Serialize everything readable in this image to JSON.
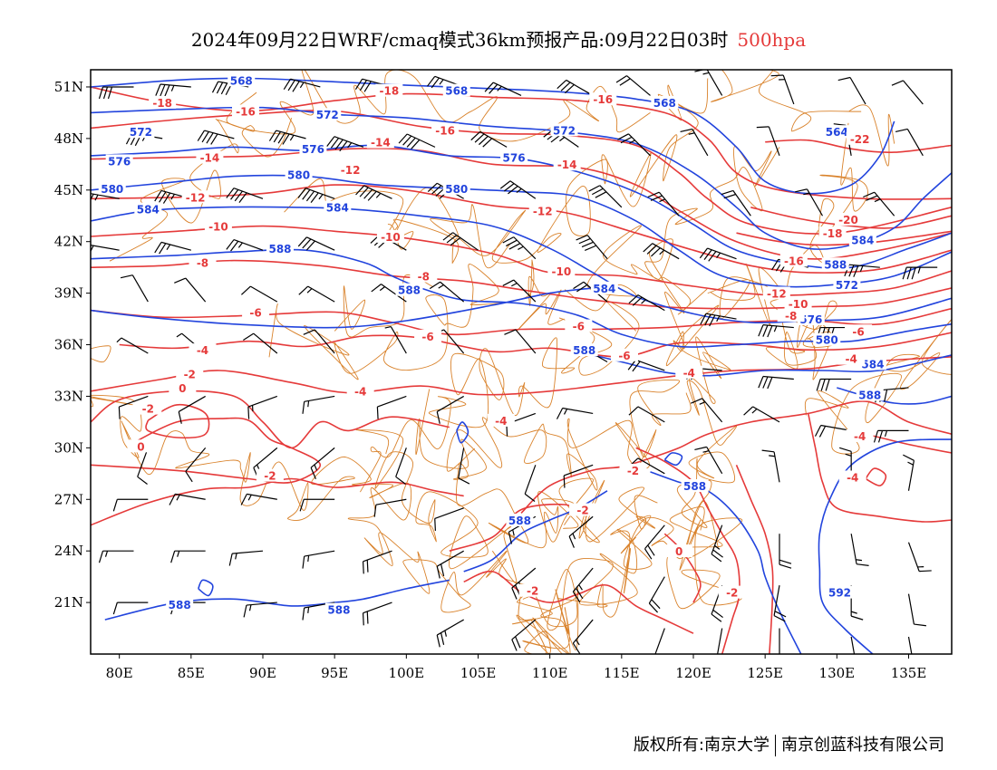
{
  "header": {
    "title": "2024年09月22日WRF/cmaq模式36km预报产品:09月22日03时",
    "level": "500hpa"
  },
  "colors": {
    "height_contour": "#2244dd",
    "temp_contour": "#e53a3a",
    "boundary": "#d9822b",
    "wind_barb": "#000000",
    "level_label": "#e53a3a"
  },
  "map": {
    "lon_range": [
      78,
      138
    ],
    "lat_range": [
      18,
      52
    ],
    "x_ticks": [
      "80E",
      "85E",
      "90E",
      "95E",
      "100E",
      "105E",
      "110E",
      "115E",
      "120E",
      "125E",
      "130E",
      "135E"
    ],
    "y_ticks": [
      "51N",
      "48N",
      "45N",
      "42N",
      "39N",
      "36N",
      "33N",
      "30N",
      "27N",
      "24N",
      "21N"
    ],
    "height_labels": [
      {
        "text": "568",
        "lon": 88.5,
        "lat": 51.3
      },
      {
        "text": "568",
        "lon": 103.5,
        "lat": 50.7
      },
      {
        "text": "568",
        "lon": 118.0,
        "lat": 50.0
      },
      {
        "text": "564",
        "lon": 130.0,
        "lat": 48.3
      },
      {
        "text": "572",
        "lon": 81.5,
        "lat": 48.3
      },
      {
        "text": "572",
        "lon": 94.5,
        "lat": 49.3
      },
      {
        "text": "572",
        "lon": 111.0,
        "lat": 48.4
      },
      {
        "text": "576",
        "lon": 80.0,
        "lat": 46.6
      },
      {
        "text": "576",
        "lon": 93.5,
        "lat": 47.3
      },
      {
        "text": "576",
        "lon": 107.5,
        "lat": 46.8
      },
      {
        "text": "580",
        "lon": 79.5,
        "lat": 45.0
      },
      {
        "text": "580",
        "lon": 92.5,
        "lat": 45.8
      },
      {
        "text": "580",
        "lon": 103.5,
        "lat": 45.0
      },
      {
        "text": "584",
        "lon": 82.0,
        "lat": 43.8
      },
      {
        "text": "584",
        "lon": 95.2,
        "lat": 43.9
      },
      {
        "text": "584",
        "lon": 131.8,
        "lat": 42.0
      },
      {
        "text": "588",
        "lon": 91.2,
        "lat": 41.5
      },
      {
        "text": "588",
        "lon": 100.2,
        "lat": 39.1
      },
      {
        "text": "584",
        "lon": 113.8,
        "lat": 39.2
      },
      {
        "text": "588",
        "lon": 129.9,
        "lat": 40.6
      },
      {
        "text": "572",
        "lon": 130.7,
        "lat": 39.4
      },
      {
        "text": "576",
        "lon": 128.2,
        "lat": 37.4
      },
      {
        "text": "580",
        "lon": 129.3,
        "lat": 36.2
      },
      {
        "text": "584",
        "lon": 132.5,
        "lat": 34.8
      },
      {
        "text": "588",
        "lon": 112.4,
        "lat": 35.6
      },
      {
        "text": "588",
        "lon": 132.3,
        "lat": 33.0
      },
      {
        "text": "588",
        "lon": 120.1,
        "lat": 27.7
      },
      {
        "text": "588",
        "lon": 107.9,
        "lat": 25.7
      },
      {
        "text": "592",
        "lon": 130.2,
        "lat": 21.5
      },
      {
        "text": "588",
        "lon": 84.2,
        "lat": 20.8
      },
      {
        "text": "588",
        "lon": 95.3,
        "lat": 20.5
      }
    ],
    "temp_labels": [
      {
        "text": "-18",
        "lon": 83.0,
        "lat": 50.0
      },
      {
        "text": "-16",
        "lon": 88.8,
        "lat": 49.5
      },
      {
        "text": "-18",
        "lon": 98.8,
        "lat": 50.7
      },
      {
        "text": "-16",
        "lon": 113.7,
        "lat": 50.2
      },
      {
        "text": "-16",
        "lon": 102.7,
        "lat": 48.4
      },
      {
        "text": "-14",
        "lon": 98.2,
        "lat": 47.7
      },
      {
        "text": "-14",
        "lon": 86.3,
        "lat": 46.8
      },
      {
        "text": "-12",
        "lon": 96.1,
        "lat": 46.1
      },
      {
        "text": "-14",
        "lon": 111.2,
        "lat": 46.4
      },
      {
        "text": "-12",
        "lon": 85.3,
        "lat": 44.5
      },
      {
        "text": "-12",
        "lon": 109.5,
        "lat": 43.7
      },
      {
        "text": "-10",
        "lon": 86.9,
        "lat": 42.8
      },
      {
        "text": "-10",
        "lon": 98.9,
        "lat": 42.2
      },
      {
        "text": "-10",
        "lon": 110.8,
        "lat": 40.2
      },
      {
        "text": "-8",
        "lon": 85.8,
        "lat": 40.7
      },
      {
        "text": "-8",
        "lon": 101.2,
        "lat": 39.9
      },
      {
        "text": "-6",
        "lon": 89.5,
        "lat": 37.8
      },
      {
        "text": "-6",
        "lon": 101.5,
        "lat": 36.4
      },
      {
        "text": "-6",
        "lon": 112.0,
        "lat": 37.0
      },
      {
        "text": "-6",
        "lon": 115.2,
        "lat": 35.3
      },
      {
        "text": "-4",
        "lon": 85.8,
        "lat": 35.6
      },
      {
        "text": "-4",
        "lon": 96.8,
        "lat": 33.2
      },
      {
        "text": "-4",
        "lon": 119.7,
        "lat": 34.3
      },
      {
        "text": "-4",
        "lon": 106.6,
        "lat": 31.5
      },
      {
        "text": "-2",
        "lon": 84.9,
        "lat": 34.2
      },
      {
        "text": "0",
        "lon": 84.4,
        "lat": 33.4
      },
      {
        "text": "-2",
        "lon": 82.0,
        "lat": 32.2
      },
      {
        "text": "0",
        "lon": 81.5,
        "lat": 30.0
      },
      {
        "text": "-2",
        "lon": 90.5,
        "lat": 28.3
      },
      {
        "text": "-2",
        "lon": 115.8,
        "lat": 28.6
      },
      {
        "text": "-2",
        "lon": 112.3,
        "lat": 26.3
      },
      {
        "text": "0",
        "lon": 119.0,
        "lat": 23.9
      },
      {
        "text": "-2",
        "lon": 108.8,
        "lat": 21.6
      },
      {
        "text": "-2",
        "lon": 122.7,
        "lat": 21.5
      },
      {
        "text": "-16",
        "lon": 127.0,
        "lat": 40.8
      },
      {
        "text": "-12",
        "lon": 125.8,
        "lat": 38.9
      },
      {
        "text": "-10",
        "lon": 127.3,
        "lat": 38.3
      },
      {
        "text": "-8",
        "lon": 126.8,
        "lat": 37.6
      },
      {
        "text": "-6",
        "lon": 131.5,
        "lat": 36.7
      },
      {
        "text": "-4",
        "lon": 131.0,
        "lat": 35.1
      },
      {
        "text": "-4",
        "lon": 131.6,
        "lat": 30.6
      },
      {
        "text": "-4",
        "lon": 131.1,
        "lat": 28.2
      },
      {
        "text": "-22",
        "lon": 131.6,
        "lat": 47.9
      },
      {
        "text": "-20",
        "lon": 130.8,
        "lat": 43.2
      },
      {
        "text": "-18",
        "lon": 129.7,
        "lat": 42.4
      }
    ]
  },
  "footer": {
    "left": "版权所有:南京大学",
    "right": "南京创蓝科技有限公司"
  }
}
